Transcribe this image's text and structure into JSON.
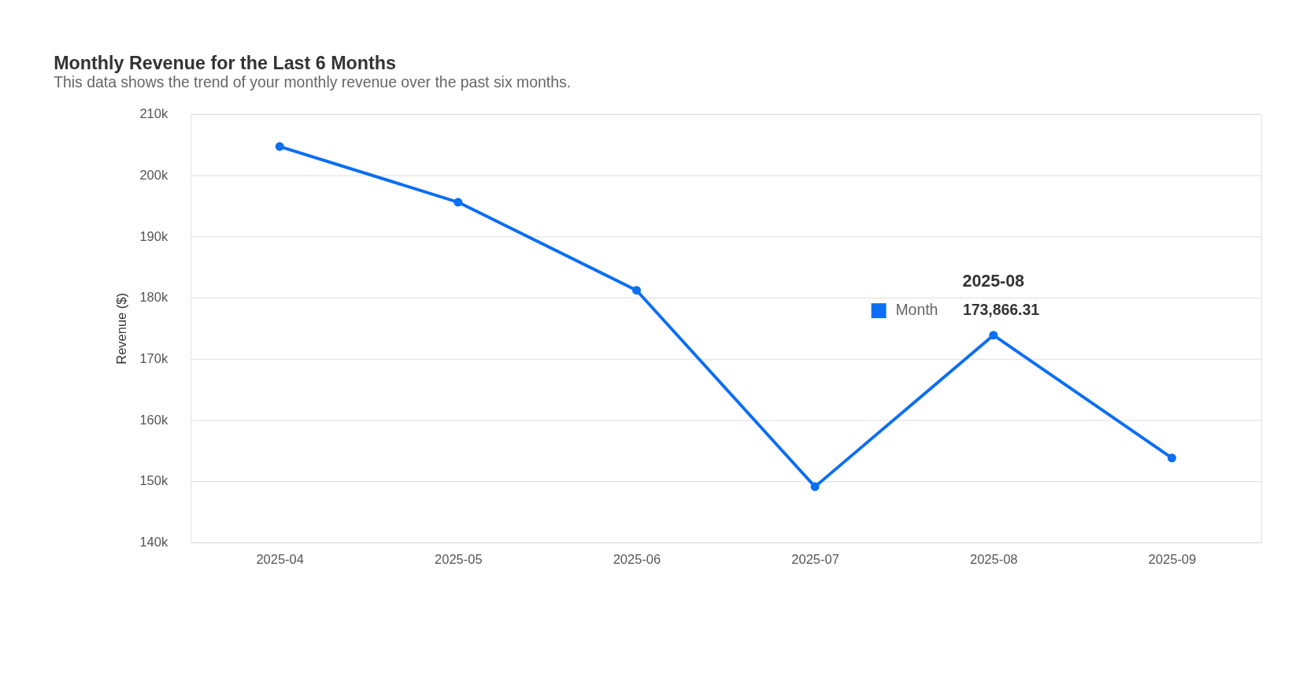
{
  "chart_data": {
    "type": "line",
    "title": "Monthly Revenue for the Last 6 Months",
    "subtitle": "This data shows the trend of your monthly revenue over the past six months.",
    "ylabel": "Revenue ($)",
    "categories": [
      "2025-04",
      "2025-05",
      "2025-06",
      "2025-07",
      "2025-08",
      "2025-09"
    ],
    "series": [
      {
        "name": "Month",
        "color": "#0b6ef3",
        "values": [
          204700,
          195600,
          181200,
          149100,
          173866.31,
          153800
        ],
        "value_labels": [
          null,
          null,
          null,
          null,
          "173,866.31",
          null
        ]
      }
    ],
    "annotations": [
      {
        "text": "2025-08",
        "x": "2025-08",
        "y": 173866.31
      }
    ],
    "ylim": [
      140000,
      210000
    ],
    "yticks": [
      {
        "value": 140000,
        "label": "140k"
      },
      {
        "value": 150000,
        "label": "150k"
      },
      {
        "value": 160000,
        "label": "160k"
      },
      {
        "value": 170000,
        "label": "170k"
      },
      {
        "value": 180000,
        "label": "180k"
      },
      {
        "value": 190000,
        "label": "190k"
      },
      {
        "value": 200000,
        "label": "200k"
      },
      {
        "value": 210000,
        "label": "210k"
      }
    ],
    "grid": "y",
    "marker": "circle",
    "line_style": "solid"
  }
}
